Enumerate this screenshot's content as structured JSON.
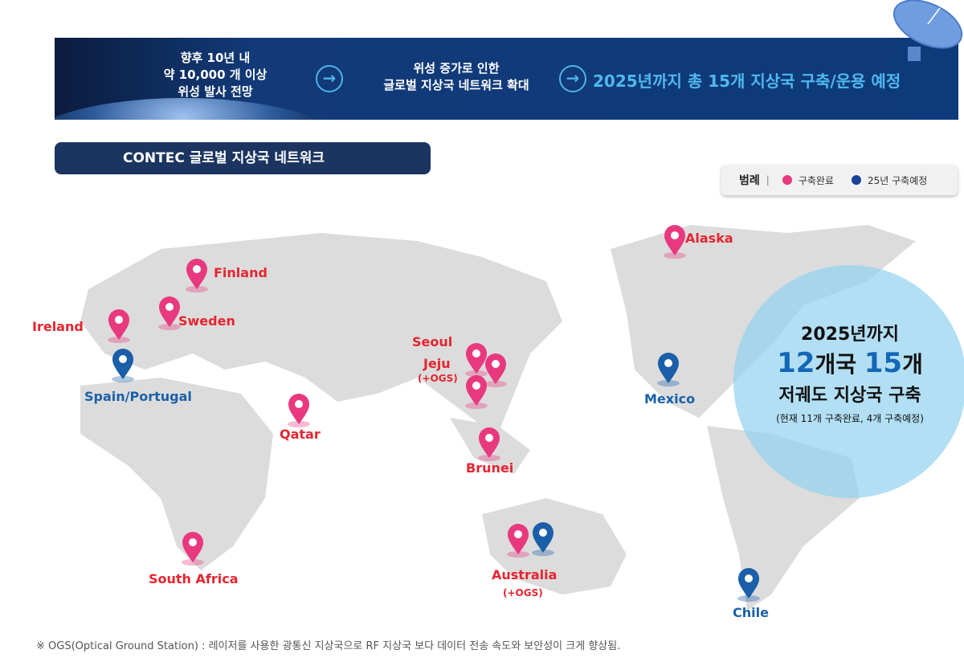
{
  "banner": {
    "left_lines": [
      "향후 10년 내",
      "약 10,000 개 이상",
      "위성 발사 전망"
    ],
    "middle_lines": [
      "위성 증가로 인한",
      "글로벌 지상국 네트워크 확대"
    ],
    "headline": "2025년까지 총 15개 지상국 구축/운용 예정"
  },
  "section_title": "CONTEC 글로벌 지상국 네트워크",
  "legend": {
    "title": "범례",
    "separator": "|",
    "items": [
      {
        "label": "구축완료",
        "color": "#e8397f"
      },
      {
        "label": "25년 구축예정",
        "color": "#17429a"
      }
    ]
  },
  "colors": {
    "completed": "#e8397f",
    "planned": "#1a5fa8",
    "label_completed": "#e52530",
    "label_planned": "#1a60a8"
  },
  "stations": [
    {
      "name": "Alaska",
      "status": "completed"
    },
    {
      "name": "Finland",
      "status": "completed"
    },
    {
      "name": "Sweden",
      "status": "completed"
    },
    {
      "name": "Ireland",
      "status": "completed"
    },
    {
      "name": "Spain/Portugal",
      "status": "planned"
    },
    {
      "name": "Qatar",
      "status": "completed"
    },
    {
      "name": "Seoul",
      "status": "completed"
    },
    {
      "name": "Jeju",
      "note": "(+OGS)",
      "status": "completed"
    },
    {
      "name": "Brunei",
      "status": "completed"
    },
    {
      "name": "South Africa",
      "status": "completed"
    },
    {
      "name": "Australia",
      "note": "(+OGS)",
      "status": "completed+planned"
    },
    {
      "name": "Mexico",
      "status": "planned"
    },
    {
      "name": "Chile",
      "status": "planned"
    }
  ],
  "summary": {
    "line1": "2025년까지",
    "countries_num": "12",
    "countries_unit": "개국",
    "stations_num": "15",
    "stations_unit": "개",
    "line3": "저궤도 지상국 구축",
    "line4": "(현재  11개 구축완료,  4개 구축예정)"
  },
  "footnote": "※ OGS(Optical Ground Station) : 레이저를 사용한 광통신 지상국으로 RF 지상국 보다 데이터 전송 속도와 보안성이 크게 향상됨."
}
